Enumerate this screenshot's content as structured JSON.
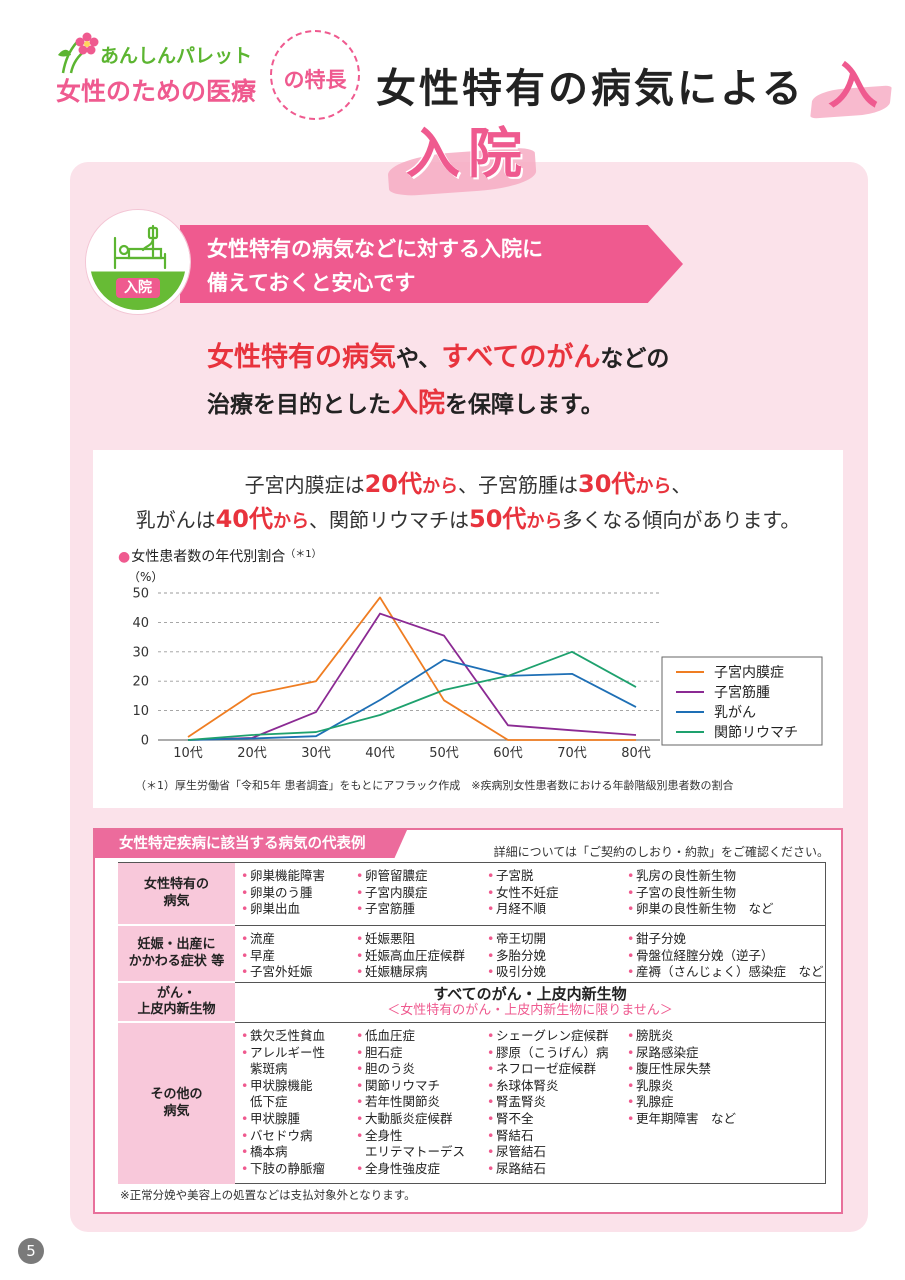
{
  "brand": {
    "tagline": "あんしんパレット",
    "product": "女性のための医療",
    "feature_suffix": "の特長",
    "logo_icon": "flower-logo-icon"
  },
  "header": {
    "title": "女性特有の病気による",
    "title_accent": "入",
    "subtitle": "入院"
  },
  "banner": {
    "icon": "hospital-bed-icon",
    "icon_label": "入院",
    "line1": "女性特有の病気などに対する入院に",
    "line2": "備えておくと安心です"
  },
  "lead": {
    "line1": [
      "女性特有の病気",
      "や、",
      "すべてのがん",
      "などの"
    ],
    "line2": [
      "治療を目的とした",
      "入院",
      "を保障します。"
    ]
  },
  "trend": {
    "line1": [
      "子宮内膜症は",
      "20代",
      "から",
      "、子宮筋腫は",
      "30代",
      "から",
      "、"
    ],
    "line2": [
      "乳がんは",
      "40代",
      "から",
      "、関節リウマチは",
      "50代",
      "から",
      "多くなる傾向があります。"
    ]
  },
  "chart_data": {
    "type": "line",
    "title": "女性患者数の年代別割合",
    "title_note": "（＊1）",
    "ylabel": "（%）",
    "xlabel": "",
    "categories": [
      "10代",
      "20代",
      "30代",
      "40代",
      "50代",
      "60代",
      "70代",
      "80代"
    ],
    "yticks": [
      0,
      10,
      20,
      30,
      40,
      50
    ],
    "ylim": [
      0,
      50
    ],
    "grid": true,
    "legend": "right",
    "series": [
      {
        "name": "子宮内膜症",
        "color": "#ef7d22",
        "values": [
          1,
          15.5,
          20,
          48.5,
          13.5,
          0,
          0,
          0
        ]
      },
      {
        "name": "子宮筋腫",
        "color": "#8b2a93",
        "values": [
          0,
          0.7,
          9.5,
          43,
          35.5,
          5,
          3.3,
          1.7
        ]
      },
      {
        "name": "乳がん",
        "color": "#1e6fb5",
        "values": [
          0,
          0.5,
          1.3,
          13.6,
          27.3,
          21.8,
          22.5,
          11.2
        ]
      },
      {
        "name": "関節リウマチ",
        "color": "#1ea16e",
        "values": [
          0,
          1.7,
          2.7,
          8.5,
          17,
          21.8,
          30,
          18
        ]
      }
    ]
  },
  "chart_footnote": "（＊1）厚生労働省「令和5年 患者調査」をもとにアフラック作成　※疾病別女性患者数における年齢階級別患者数の割合",
  "disease_table": {
    "tab_title": "女性特定疾病に該当する病気の代表例",
    "note": "詳細については「ご契約のしおり・約款」をご確認ください。",
    "rows": [
      {
        "header": "女性特有の\n病気",
        "columns": [
          [
            "卵巣機能障害",
            "卵巣のう腫",
            "卵巣出血"
          ],
          [
            "卵管留膿症",
            "子宮内膜症",
            "子宮筋腫"
          ],
          [
            "子宮脱",
            "女性不妊症",
            "月経不順"
          ],
          [
            "乳房の良性新生物",
            "子宮の良性新生物",
            "卵巣の良性新生物　など"
          ]
        ]
      },
      {
        "header": "妊娠・出産に\nかかわる症状 等",
        "columns": [
          [
            "流産",
            "早産",
            "子宮外妊娠"
          ],
          [
            "妊娠悪阻",
            "妊娠高血圧症候群",
            "妊娠糖尿病"
          ],
          [
            "帝王切開",
            "多胎分娩",
            "吸引分娩"
          ],
          [
            "鉗子分娩",
            "骨盤位経腟分娩（逆子）",
            "産褥（さんじょく）感染症　など"
          ]
        ]
      },
      {
        "header": "がん・\n上皮内新生物",
        "main": "すべてのがん・上皮内新生物",
        "sub": "＜女性特有のがん・上皮内新生物に限りません＞"
      },
      {
        "header": "その他の\n病気",
        "columns": [
          [
            "鉄欠乏性貧血",
            "アレルギー性\n紫斑病",
            "甲状腺機能\n低下症",
            "甲状腺腫",
            "バセドウ病",
            "橋本病",
            "下肢の静脈瘤"
          ],
          [
            "低血圧症",
            "胆石症",
            "胆のう炎",
            "関節リウマチ",
            "若年性関節炎",
            "大動脈炎症候群",
            "全身性\nエリテマトーデス",
            "全身性強皮症"
          ],
          [
            "シェーグレン症候群",
            "膠原（こうげん）病",
            "ネフローゼ症候群",
            "糸球体腎炎",
            "腎盂腎炎",
            "腎不全",
            "腎結石",
            "尿管結石",
            "尿路結石"
          ],
          [
            "膀胱炎",
            "尿路感染症",
            "腹圧性尿失禁",
            "乳腺炎",
            "乳腺症",
            "更年期障害　など"
          ]
        ]
      }
    ],
    "footnote": "※正常分娩や美容上の処置などは支払対象外となります。"
  },
  "page_number": "5",
  "colors": {
    "brand_pink": "#ef5a8f",
    "highlight_red": "#e8333d",
    "brand_green": "#5cb531",
    "panel_bg": "#fbe2ea",
    "table_header_bg": "#f8c8da"
  }
}
